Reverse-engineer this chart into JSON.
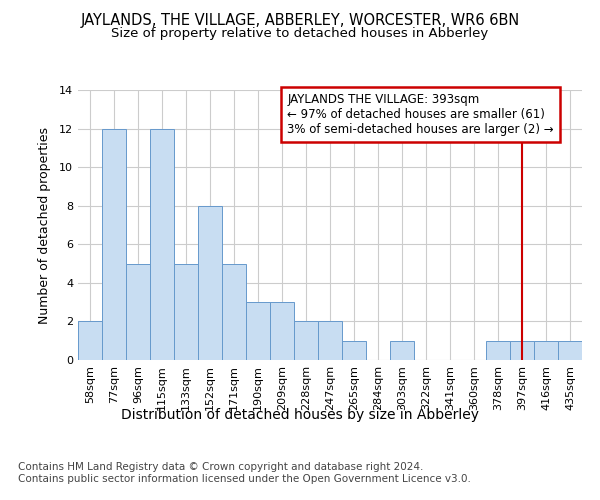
{
  "title": "JAYLANDS, THE VILLAGE, ABBERLEY, WORCESTER, WR6 6BN",
  "subtitle": "Size of property relative to detached houses in Abberley",
  "xlabel_bottom": "Distribution of detached houses by size in Abberley",
  "ylabel": "Number of detached properties",
  "categories": [
    "58sqm",
    "77sqm",
    "96sqm",
    "115sqm",
    "133sqm",
    "152sqm",
    "171sqm",
    "190sqm",
    "209sqm",
    "228sqm",
    "247sqm",
    "265sqm",
    "284sqm",
    "303sqm",
    "322sqm",
    "341sqm",
    "360sqm",
    "378sqm",
    "397sqm",
    "416sqm",
    "435sqm"
  ],
  "values": [
    2,
    12,
    5,
    12,
    5,
    8,
    5,
    3,
    3,
    2,
    2,
    1,
    0,
    1,
    0,
    0,
    0,
    1,
    1,
    1,
    1
  ],
  "bar_color": "#c8ddf2",
  "bar_edge_color": "#6699cc",
  "highlight_index": 18,
  "highlight_line_color": "#cc0000",
  "ylim": [
    0,
    14
  ],
  "yticks": [
    0,
    2,
    4,
    6,
    8,
    10,
    12,
    14
  ],
  "annotation_line1": "JAYLANDS THE VILLAGE: 393sqm",
  "annotation_line2": "← 97% of detached houses are smaller (61)",
  "annotation_line3": "3% of semi-detached houses are larger (2) →",
  "annotation_box_color": "#cc0000",
  "footer": "Contains HM Land Registry data © Crown copyright and database right 2024.\nContains public sector information licensed under the Open Government Licence v3.0.",
  "background_color": "#ffffff",
  "grid_color": "#cccccc",
  "title_fontsize": 10.5,
  "subtitle_fontsize": 9.5,
  "ylabel_fontsize": 9,
  "xlabel_fontsize": 10,
  "tick_fontsize": 8,
  "annotation_fontsize": 8.5,
  "footer_fontsize": 7.5
}
